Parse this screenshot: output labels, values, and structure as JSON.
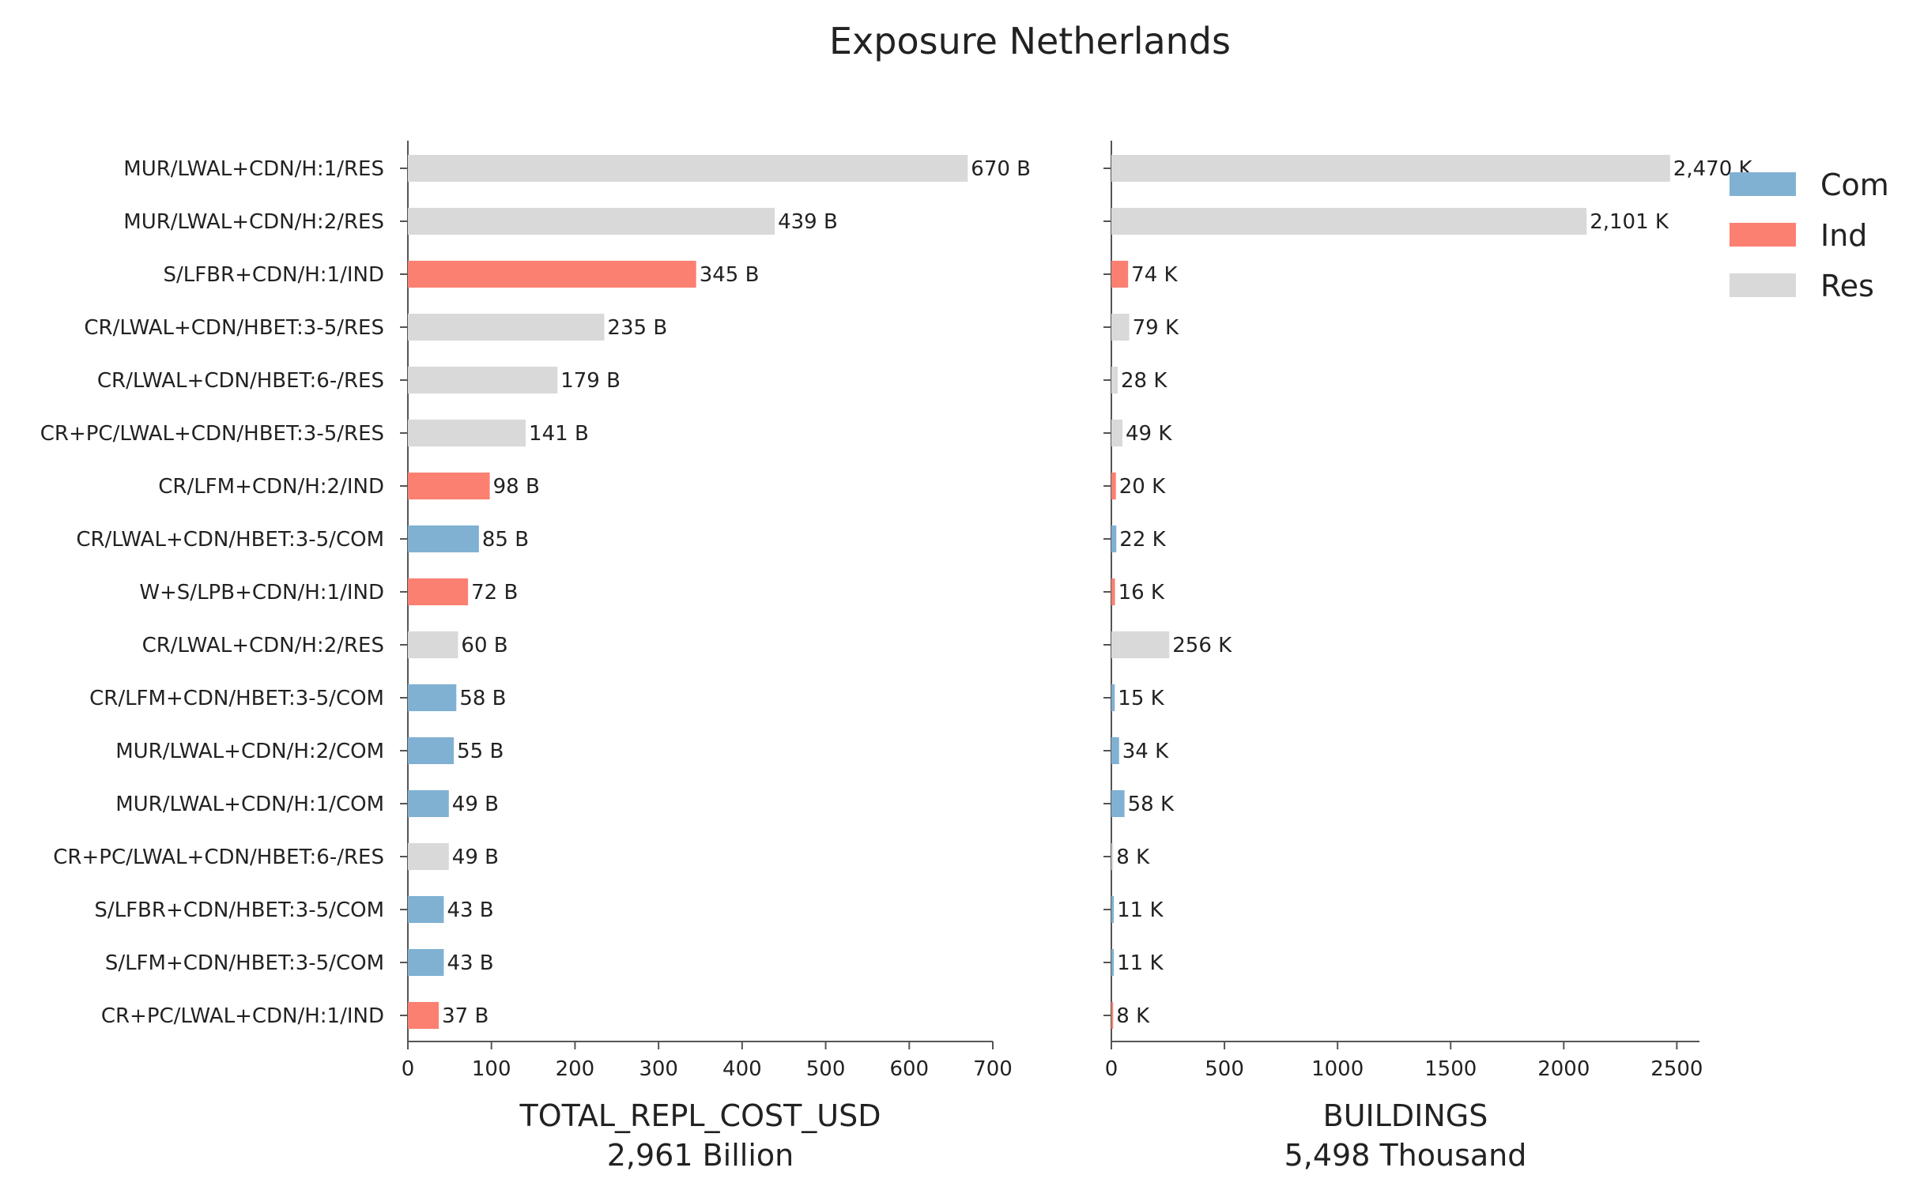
{
  "title": "Exposure Netherlands",
  "legend": {
    "placement": "top-right",
    "items": [
      {
        "name": "Com",
        "color": "#80B1D3"
      },
      {
        "name": "Ind",
        "color": "#FB8072"
      },
      {
        "name": "Res",
        "color": "#D9D9D9"
      }
    ]
  },
  "chart_data": [
    {
      "type": "bar",
      "orientation": "horizontal",
      "xlabel": "TOTAL_REPL_COST_USD",
      "xlabel_sub": "2,961 Billion",
      "xlim": [
        0,
        700
      ],
      "xticks": [
        0,
        100,
        200,
        300,
        400,
        500,
        600,
        700
      ],
      "grid": false,
      "categories": [
        "MUR/LWAL+CDN/H:1/RES",
        "MUR/LWAL+CDN/H:2/RES",
        "S/LFBR+CDN/H:1/IND",
        "CR/LWAL+CDN/HBET:3-5/RES",
        "CR/LWAL+CDN/HBET:6-/RES",
        "CR+PC/LWAL+CDN/HBET:3-5/RES",
        "CR/LFM+CDN/H:2/IND",
        "CR/LWAL+CDN/HBET:3-5/COM",
        "W+S/LPB+CDN/H:1/IND",
        "CR/LWAL+CDN/H:2/RES",
        "CR/LFM+CDN/HBET:3-5/COM",
        "MUR/LWAL+CDN/H:2/COM",
        "MUR/LWAL+CDN/H:1/COM",
        "CR+PC/LWAL+CDN/HBET:6-/RES",
        "S/LFBR+CDN/HBET:3-5/COM",
        "S/LFM+CDN/HBET:3-5/COM",
        "CR+PC/LWAL+CDN/H:1/IND"
      ],
      "groups": [
        "Res",
        "Res",
        "Ind",
        "Res",
        "Res",
        "Res",
        "Ind",
        "Com",
        "Ind",
        "Res",
        "Com",
        "Com",
        "Com",
        "Res",
        "Com",
        "Com",
        "Ind"
      ],
      "values": [
        670,
        439,
        345,
        235,
        179,
        141,
        98,
        85,
        72,
        60,
        58,
        55,
        49,
        49,
        43,
        43,
        37
      ],
      "value_labels": [
        "670 B",
        "439 B",
        "345 B",
        "235 B",
        "179 B",
        "141 B",
        "98 B",
        "85 B",
        "72 B",
        "60 B",
        "58 B",
        "55 B",
        "49 B",
        "49 B",
        "43 B",
        "43 B",
        "37 B"
      ]
    },
    {
      "type": "bar",
      "orientation": "horizontal",
      "xlabel": "BUILDINGS",
      "xlabel_sub": "5,498 Thousand",
      "xlim": [
        0,
        2600
      ],
      "xticks": [
        0,
        500,
        1000,
        1500,
        2000,
        2500
      ],
      "grid": false,
      "groups": [
        "Res",
        "Res",
        "Ind",
        "Res",
        "Res",
        "Res",
        "Ind",
        "Com",
        "Ind",
        "Res",
        "Com",
        "Com",
        "Com",
        "Res",
        "Com",
        "Com",
        "Ind"
      ],
      "values": [
        2470,
        2101,
        74,
        79,
        28,
        49,
        20,
        22,
        16,
        256,
        15,
        34,
        58,
        8,
        11,
        11,
        8
      ],
      "value_labels": [
        "2,470 K",
        "2,101 K",
        "74 K",
        "79 K",
        "28 K",
        "49 K",
        "20 K",
        "22 K",
        "16 K",
        "256 K",
        "15 K",
        "34 K",
        "58 K",
        "8 K",
        "11 K",
        "11 K",
        "8 K"
      ]
    }
  ]
}
